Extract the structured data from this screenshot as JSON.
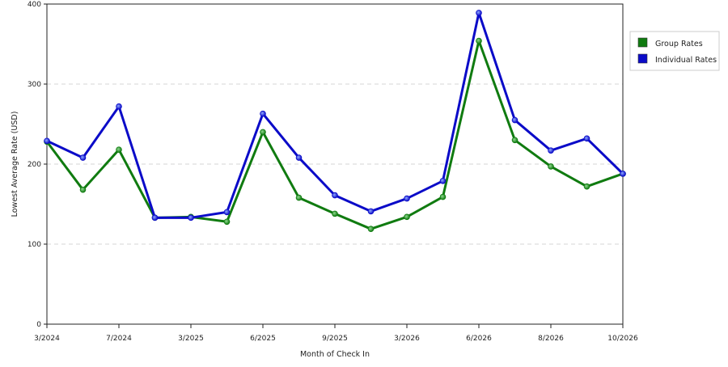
{
  "chart_data": {
    "type": "line",
    "title": "",
    "xlabel": "Month of Check In",
    "ylabel": "Lowest Average Rate (USD)",
    "ylim": [
      0,
      400
    ],
    "yticks": [
      0,
      100,
      200,
      300,
      400
    ],
    "x_tick_labels": [
      "3/2024",
      "7/2024",
      "3/2025",
      "6/2025",
      "9/2025",
      "3/2026",
      "6/2026",
      "8/2026",
      "10/2026"
    ],
    "grid": "horizontal dashed",
    "legend_position": "right",
    "series": [
      {
        "name": "Group Rates",
        "color": "#107b10",
        "values": [
          228,
          168,
          218,
          133,
          134,
          128,
          240,
          158,
          138,
          119,
          134,
          159,
          354,
          230,
          197,
          172,
          188
        ]
      },
      {
        "name": "Individual Rates",
        "color": "#0b0bc8",
        "values": [
          229,
          208,
          272,
          133,
          133,
          140,
          263,
          208,
          161,
          141,
          157,
          179,
          389,
          255,
          217,
          232,
          188
        ]
      }
    ]
  }
}
